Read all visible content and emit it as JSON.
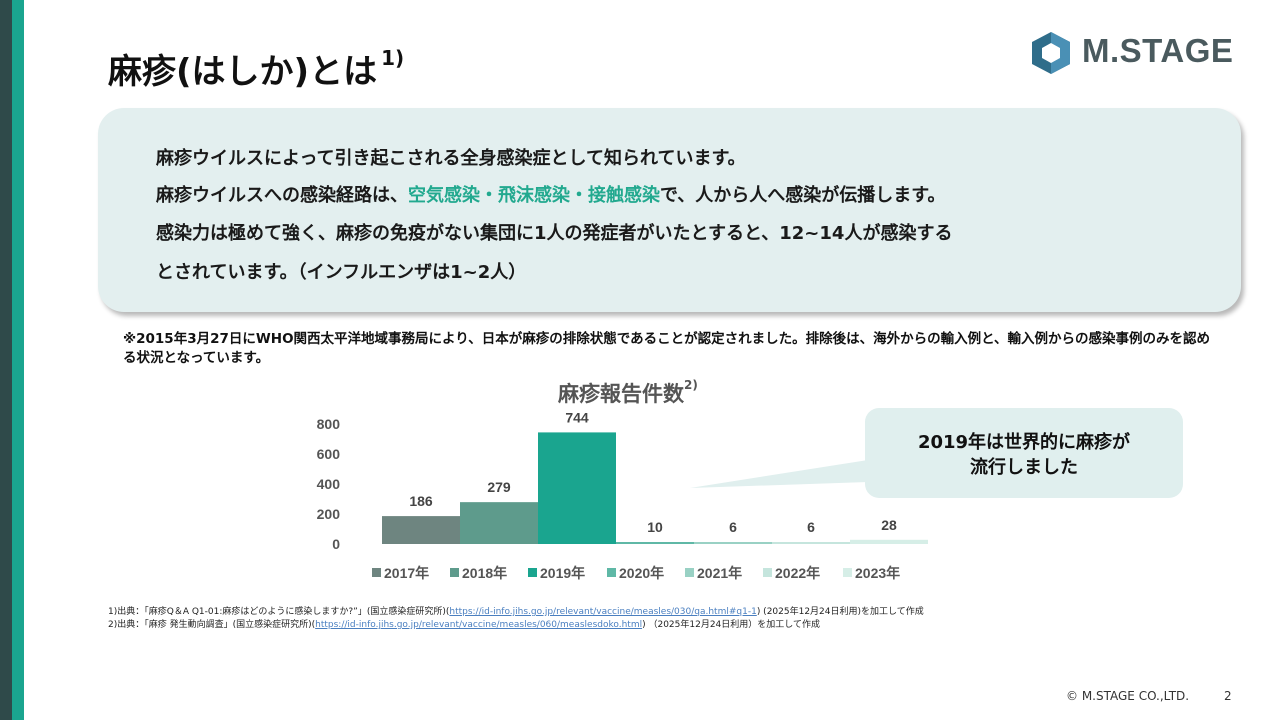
{
  "title": {
    "text": "麻疹(はしか)とは",
    "sup": "1)"
  },
  "logo": {
    "text": "M.STAGE",
    "colors": {
      "hex_dark": "#2f6d8a",
      "hex_light": "#4a90b5",
      "text": "#4a5a5e"
    }
  },
  "info": {
    "line1": "麻疹ウイルスによって引き起こされる全身感染症として知られています。",
    "line2_pre": "麻疹ウイルスへの感染経路は、",
    "line2_highlight": "空気感染・飛沫感染・接触感染",
    "line2_post": "で、人から人へ感染が伝播します。",
    "line3": "感染力は極めて強く、麻疹の免疫がない集団に1人の発症者がいたとすると、12~14人が感染する",
    "line4": "とされています。（インフルエンザは1~2人）"
  },
  "note": "※2015年3月27日にWHO関西太平洋地域事務局により、日本が麻疹の排除状態であることが認定されました。排除後は、海外からの輸入例と、輸入例からの感染事例のみを認める状況となっています。",
  "chart_title": {
    "text": "麻疹報告件数",
    "sup": "2)"
  },
  "callout": {
    "line1": "2019年は世界的に麻疹が",
    "line2": "流行しました"
  },
  "chart_data": {
    "type": "bar",
    "title": "麻疹報告件数",
    "categories": [
      "2017年",
      "2018年",
      "2019年",
      "2020年",
      "2021年",
      "2022年",
      "2023年"
    ],
    "values": [
      186,
      279,
      744,
      10,
      6,
      6,
      28
    ],
    "colors": [
      "#6e8580",
      "#5e9b8c",
      "#1aa58f",
      "#5fb8a6",
      "#99d1c4",
      "#c5e5dd",
      "#d6eee7"
    ],
    "yticks": [
      0,
      200,
      400,
      600,
      800
    ],
    "ylim": [
      0,
      800
    ],
    "grid": false,
    "legend": "bottom",
    "data_labels": true
  },
  "refs": {
    "ref1_pre": "1)出典：「麻疹Q＆A Q1-01:麻疹はどのように感染しますか?”」(国立感染症研究所)(",
    "ref1_link": "https://id-info.jihs.go.jp/relevant/vaccine/measles/030/qa.html#q1-1",
    "ref1_post": ") (2025年12月24日利用)を加工して作成",
    "ref2_pre": "2)出典：「麻疹 発生動向調査」(国立感染症研究所)(",
    "ref2_link": "https://id-info.jihs.go.jp/relevant/vaccine/measles/060/measlesdoko.html",
    "ref2_post": ") （2025年12月24日利用）を加工して作成"
  },
  "footer": {
    "copyright": "© M.STAGE CO.,LTD.",
    "page": "2"
  },
  "colors": {
    "accent": "#1aa58f",
    "sidebar": "#2f4a4a",
    "box_bg": "#e3efef",
    "highlight": "#22a98f"
  }
}
